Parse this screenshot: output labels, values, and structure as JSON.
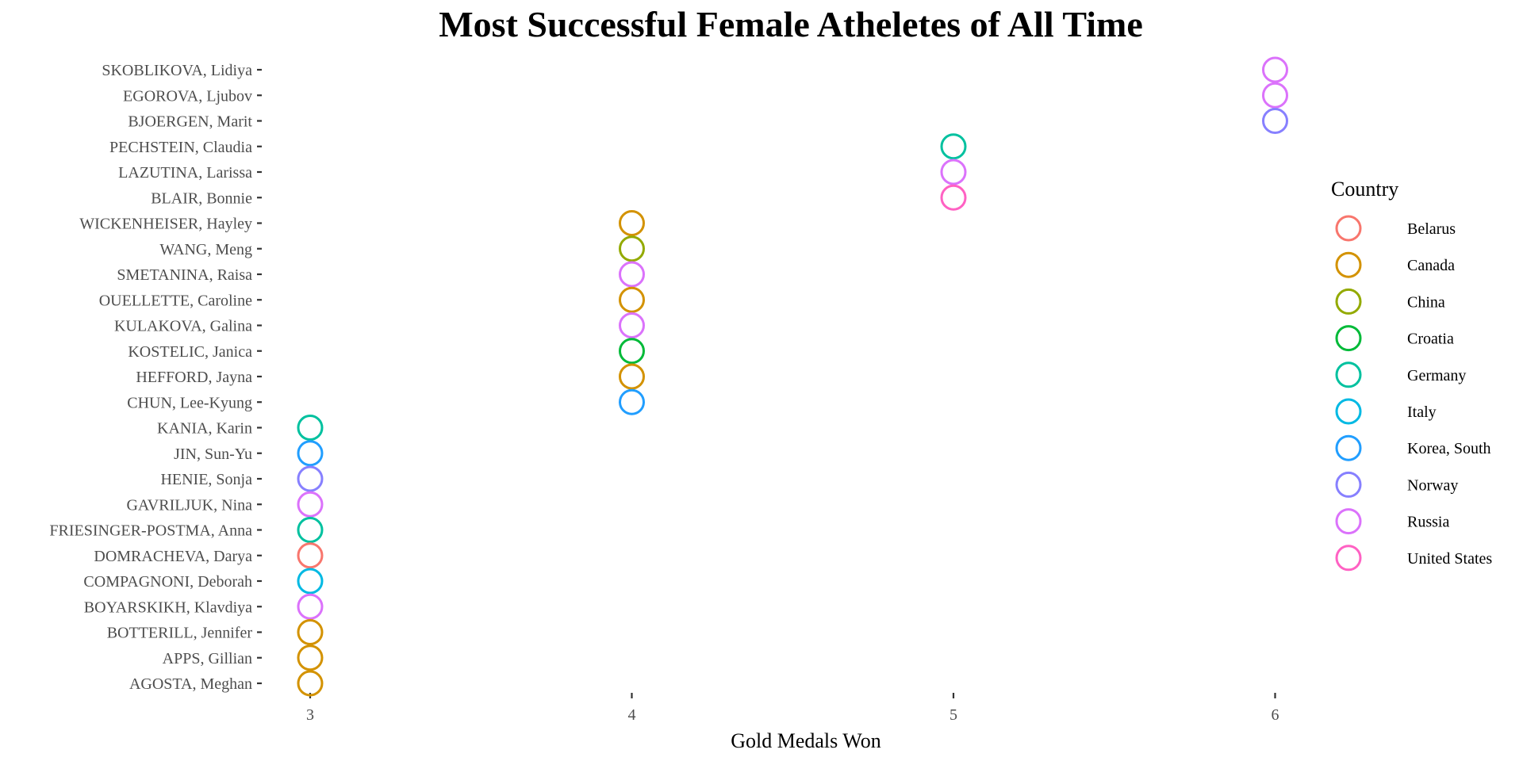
{
  "chart_data": {
    "type": "scatter",
    "title": "Most Successful Female Atheletes of All Time",
    "xlabel": "Gold Medals Won",
    "ylabel": "",
    "xlim": [
      2.95,
      6.05
    ],
    "xticks": [
      3,
      4,
      5,
      6
    ],
    "grid": false,
    "legend_title": "Country",
    "legend_position": "right",
    "categories": [
      "SKOBLIKOVA, Lidiya",
      "EGOROVA, Ljubov",
      "BJOERGEN, Marit",
      "PECHSTEIN, Claudia",
      "LAZUTINA, Larissa",
      "BLAIR, Bonnie",
      "WICKENHEISER, Hayley",
      "WANG, Meng",
      "SMETANINA, Raisa",
      "OUELLETTE, Caroline",
      "KULAKOVA, Galina",
      "KOSTELIC, Janica",
      "HEFFORD, Jayna",
      "CHUN, Lee-Kyung",
      "KANIA, Karin",
      "JIN, Sun-Yu",
      "HENIE, Sonja",
      "GAVRILJUK, Nina",
      "FRIESINGER-POSTMA, Anna",
      "DOMRACHEVA, Darya",
      "COMPAGNONI, Deborah",
      "BOYARSKIKH, Klavdiya",
      "BOTTERILL, Jennifer",
      "APPS, Gillian",
      "AGOSTA, Meghan"
    ],
    "points": [
      {
        "athlete": "SKOBLIKOVA, Lidiya",
        "gold": 6,
        "country": "Russia"
      },
      {
        "athlete": "EGOROVA, Ljubov",
        "gold": 6,
        "country": "Russia"
      },
      {
        "athlete": "BJOERGEN, Marit",
        "gold": 6,
        "country": "Norway"
      },
      {
        "athlete": "PECHSTEIN, Claudia",
        "gold": 5,
        "country": "Germany"
      },
      {
        "athlete": "LAZUTINA, Larissa",
        "gold": 5,
        "country": "Russia"
      },
      {
        "athlete": "BLAIR, Bonnie",
        "gold": 5,
        "country": "United States"
      },
      {
        "athlete": "WICKENHEISER, Hayley",
        "gold": 4,
        "country": "Canada"
      },
      {
        "athlete": "WANG, Meng",
        "gold": 4,
        "country": "China"
      },
      {
        "athlete": "SMETANINA, Raisa",
        "gold": 4,
        "country": "Russia"
      },
      {
        "athlete": "OUELLETTE, Caroline",
        "gold": 4,
        "country": "Canada"
      },
      {
        "athlete": "KULAKOVA, Galina",
        "gold": 4,
        "country": "Russia"
      },
      {
        "athlete": "KOSTELIC, Janica",
        "gold": 4,
        "country": "Croatia"
      },
      {
        "athlete": "HEFFORD, Jayna",
        "gold": 4,
        "country": "Canada"
      },
      {
        "athlete": "CHUN, Lee-Kyung",
        "gold": 4,
        "country": "Korea, South"
      },
      {
        "athlete": "KANIA, Karin",
        "gold": 3,
        "country": "Germany"
      },
      {
        "athlete": "JIN, Sun-Yu",
        "gold": 3,
        "country": "Korea, South"
      },
      {
        "athlete": "HENIE, Sonja",
        "gold": 3,
        "country": "Norway"
      },
      {
        "athlete": "GAVRILJUK, Nina",
        "gold": 3,
        "country": "Russia"
      },
      {
        "athlete": "FRIESINGER-POSTMA, Anna",
        "gold": 3,
        "country": "Germany"
      },
      {
        "athlete": "DOMRACHEVA, Darya",
        "gold": 3,
        "country": "Belarus"
      },
      {
        "athlete": "COMPAGNONI, Deborah",
        "gold": 3,
        "country": "Italy"
      },
      {
        "athlete": "BOYARSKIKH, Klavdiya",
        "gold": 3,
        "country": "Russia"
      },
      {
        "athlete": "BOTTERILL, Jennifer",
        "gold": 3,
        "country": "Canada"
      },
      {
        "athlete": "APPS, Gillian",
        "gold": 3,
        "country": "Canada"
      },
      {
        "athlete": "AGOSTA, Meghan",
        "gold": 3,
        "country": "Canada"
      }
    ],
    "legend": [
      {
        "name": "Belarus",
        "color": "#F8766D"
      },
      {
        "name": "Canada",
        "color": "#D39200"
      },
      {
        "name": "China",
        "color": "#93AA00"
      },
      {
        "name": "Croatia",
        "color": "#00BA38"
      },
      {
        "name": "Germany",
        "color": "#00C19F"
      },
      {
        "name": "Italy",
        "color": "#00B9E3"
      },
      {
        "name": "Korea, South",
        "color": "#219EFF"
      },
      {
        "name": "Norway",
        "color": "#8780FF"
      },
      {
        "name": "Russia",
        "color": "#DB72FB"
      },
      {
        "name": "United States",
        "color": "#FF61C3"
      }
    ]
  }
}
